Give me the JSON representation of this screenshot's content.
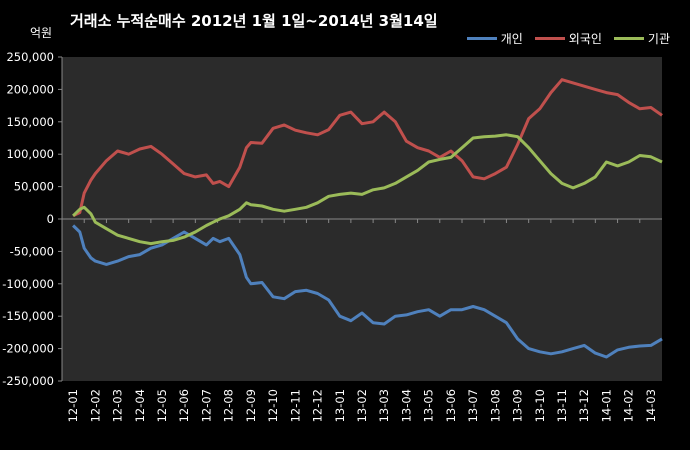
{
  "chart_data": {
    "type": "line",
    "title": "거래소 누적순매수 2012년 1월 1일~2014년 3월14일",
    "ylabel": "억원",
    "xlabel": "",
    "ylim": [
      -250000,
      250000
    ],
    "yticks": [
      -250000,
      -200000,
      -150000,
      -100000,
      -50000,
      0,
      50000,
      100000,
      150000,
      200000,
      250000
    ],
    "ytick_labels": [
      "-250,000",
      "-200,000",
      "-150,000",
      "-100,000",
      "-50,000",
      "0",
      "50,000",
      "100,000",
      "150,000",
      "200,000",
      "250,000"
    ],
    "categories": [
      "12-01",
      "12-02",
      "12-03",
      "12-04",
      "12-05",
      "12-06",
      "12-07",
      "12-08",
      "12-09",
      "12-10",
      "12-11",
      "12-12",
      "13-01",
      "13-02",
      "13-03",
      "13-04",
      "13-05",
      "13-06",
      "13-07",
      "13-08",
      "13-09",
      "13-10",
      "13-11",
      "13-12",
      "14-01",
      "14-02",
      "14-03"
    ],
    "legend_position": "top-right",
    "grid": false,
    "series": [
      {
        "name": "개인",
        "color": "#4f81bd",
        "points": [
          [
            0,
            -10000
          ],
          [
            0.3,
            -20000
          ],
          [
            0.5,
            -45000
          ],
          [
            0.8,
            -60000
          ],
          [
            1,
            -65000
          ],
          [
            1.5,
            -70000
          ],
          [
            2,
            -65000
          ],
          [
            2.5,
            -58000
          ],
          [
            3,
            -55000
          ],
          [
            3.5,
            -45000
          ],
          [
            4,
            -40000
          ],
          [
            4.5,
            -30000
          ],
          [
            5,
            -20000
          ],
          [
            5.5,
            -30000
          ],
          [
            6,
            -40000
          ],
          [
            6.3,
            -30000
          ],
          [
            6.6,
            -35000
          ],
          [
            7,
            -30000
          ],
          [
            7.5,
            -55000
          ],
          [
            7.8,
            -90000
          ],
          [
            8,
            -100000
          ],
          [
            8.5,
            -98000
          ],
          [
            9,
            -120000
          ],
          [
            9.5,
            -123000
          ],
          [
            10,
            -112000
          ],
          [
            10.5,
            -110000
          ],
          [
            11,
            -115000
          ],
          [
            11.5,
            -125000
          ],
          [
            12,
            -150000
          ],
          [
            12.5,
            -157000
          ],
          [
            13,
            -145000
          ],
          [
            13.5,
            -160000
          ],
          [
            14,
            -162000
          ],
          [
            14.5,
            -150000
          ],
          [
            15,
            -148000
          ],
          [
            15.5,
            -143000
          ],
          [
            16,
            -140000
          ],
          [
            16.5,
            -150000
          ],
          [
            17,
            -140000
          ],
          [
            17.5,
            -140000
          ],
          [
            18,
            -135000
          ],
          [
            18.5,
            -140000
          ],
          [
            19,
            -150000
          ],
          [
            19.5,
            -160000
          ],
          [
            20,
            -185000
          ],
          [
            20.5,
            -200000
          ],
          [
            21,
            -205000
          ],
          [
            21.5,
            -208000
          ],
          [
            22,
            -205000
          ],
          [
            22.5,
            -200000
          ],
          [
            23,
            -195000
          ],
          [
            23.5,
            -207000
          ],
          [
            24,
            -213000
          ],
          [
            24.5,
            -202000
          ],
          [
            25,
            -198000
          ],
          [
            25.5,
            -196000
          ],
          [
            26,
            -195000
          ],
          [
            26.5,
            -185000
          ]
        ]
      },
      {
        "name": "외국인",
        "color": "#c0504d",
        "points": [
          [
            0,
            5000
          ],
          [
            0.3,
            10000
          ],
          [
            0.5,
            40000
          ],
          [
            0.8,
            60000
          ],
          [
            1,
            70000
          ],
          [
            1.5,
            90000
          ],
          [
            2,
            105000
          ],
          [
            2.5,
            100000
          ],
          [
            3,
            108000
          ],
          [
            3.5,
            112000
          ],
          [
            4,
            100000
          ],
          [
            4.5,
            85000
          ],
          [
            5,
            70000
          ],
          [
            5.5,
            65000
          ],
          [
            6,
            68000
          ],
          [
            6.3,
            55000
          ],
          [
            6.6,
            58000
          ],
          [
            7,
            50000
          ],
          [
            7.5,
            80000
          ],
          [
            7.8,
            110000
          ],
          [
            8,
            118000
          ],
          [
            8.5,
            117000
          ],
          [
            9,
            140000
          ],
          [
            9.5,
            145000
          ],
          [
            10,
            137000
          ],
          [
            10.5,
            133000
          ],
          [
            11,
            130000
          ],
          [
            11.5,
            138000
          ],
          [
            12,
            160000
          ],
          [
            12.5,
            165000
          ],
          [
            13,
            147000
          ],
          [
            13.5,
            150000
          ],
          [
            14,
            165000
          ],
          [
            14.5,
            150000
          ],
          [
            15,
            120000
          ],
          [
            15.5,
            110000
          ],
          [
            16,
            105000
          ],
          [
            16.5,
            95000
          ],
          [
            17,
            105000
          ],
          [
            17.5,
            90000
          ],
          [
            18,
            65000
          ],
          [
            18.5,
            62000
          ],
          [
            19,
            70000
          ],
          [
            19.5,
            80000
          ],
          [
            20,
            115000
          ],
          [
            20.5,
            155000
          ],
          [
            21,
            170000
          ],
          [
            21.5,
            195000
          ],
          [
            22,
            215000
          ],
          [
            22.5,
            210000
          ],
          [
            23,
            205000
          ],
          [
            23.5,
            200000
          ],
          [
            24,
            195000
          ],
          [
            24.5,
            192000
          ],
          [
            25,
            180000
          ],
          [
            25.5,
            170000
          ],
          [
            26,
            172000
          ],
          [
            26.5,
            160000
          ]
        ]
      },
      {
        "name": "기관",
        "color": "#9bbb59",
        "points": [
          [
            0,
            5000
          ],
          [
            0.3,
            15000
          ],
          [
            0.5,
            18000
          ],
          [
            0.8,
            8000
          ],
          [
            1,
            -5000
          ],
          [
            1.5,
            -15000
          ],
          [
            2,
            -25000
          ],
          [
            2.5,
            -30000
          ],
          [
            3,
            -35000
          ],
          [
            3.5,
            -38000
          ],
          [
            4,
            -35000
          ],
          [
            4.5,
            -33000
          ],
          [
            5,
            -28000
          ],
          [
            5.5,
            -20000
          ],
          [
            6,
            -10000
          ],
          [
            6.3,
            -5000
          ],
          [
            6.6,
            0
          ],
          [
            7,
            5000
          ],
          [
            7.5,
            15000
          ],
          [
            7.8,
            25000
          ],
          [
            8,
            22000
          ],
          [
            8.5,
            20000
          ],
          [
            9,
            15000
          ],
          [
            9.5,
            12000
          ],
          [
            10,
            15000
          ],
          [
            10.5,
            18000
          ],
          [
            11,
            25000
          ],
          [
            11.5,
            35000
          ],
          [
            12,
            38000
          ],
          [
            12.5,
            40000
          ],
          [
            13,
            38000
          ],
          [
            13.5,
            45000
          ],
          [
            14,
            48000
          ],
          [
            14.5,
            55000
          ],
          [
            15,
            65000
          ],
          [
            15.5,
            75000
          ],
          [
            16,
            88000
          ],
          [
            16.5,
            92000
          ],
          [
            17,
            95000
          ],
          [
            17.5,
            110000
          ],
          [
            18,
            125000
          ],
          [
            18.5,
            127000
          ],
          [
            19,
            128000
          ],
          [
            19.5,
            130000
          ],
          [
            20,
            127000
          ],
          [
            20.5,
            110000
          ],
          [
            21,
            90000
          ],
          [
            21.5,
            70000
          ],
          [
            22,
            55000
          ],
          [
            22.5,
            48000
          ],
          [
            23,
            55000
          ],
          [
            23.5,
            65000
          ],
          [
            24,
            88000
          ],
          [
            24.5,
            82000
          ],
          [
            25,
            88000
          ],
          [
            25.5,
            98000
          ],
          [
            26,
            96000
          ],
          [
            26.5,
            88000
          ]
        ]
      }
    ]
  }
}
